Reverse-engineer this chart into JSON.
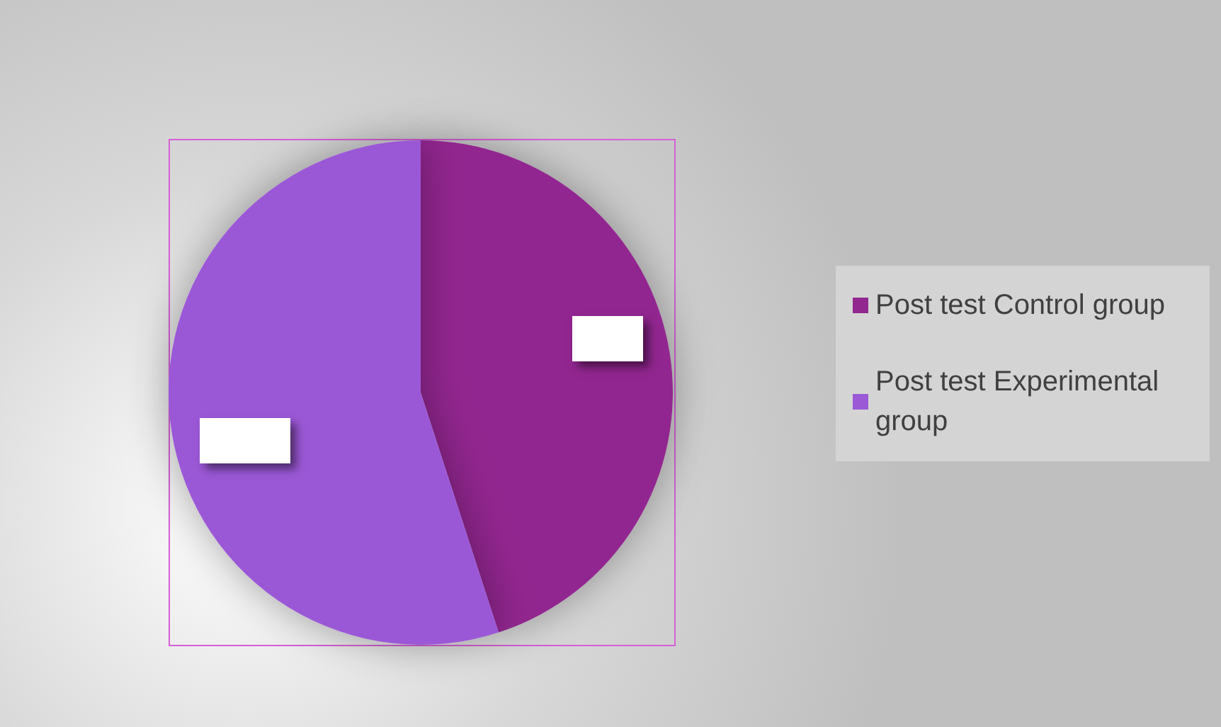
{
  "chart_data": {
    "type": "pie",
    "categories": [
      "Post test Control group",
      "Post test Experimental group"
    ],
    "values": [
      45,
      55
    ],
    "colors": [
      "#922790",
      "#9b59d6"
    ],
    "legend": "right"
  }
}
